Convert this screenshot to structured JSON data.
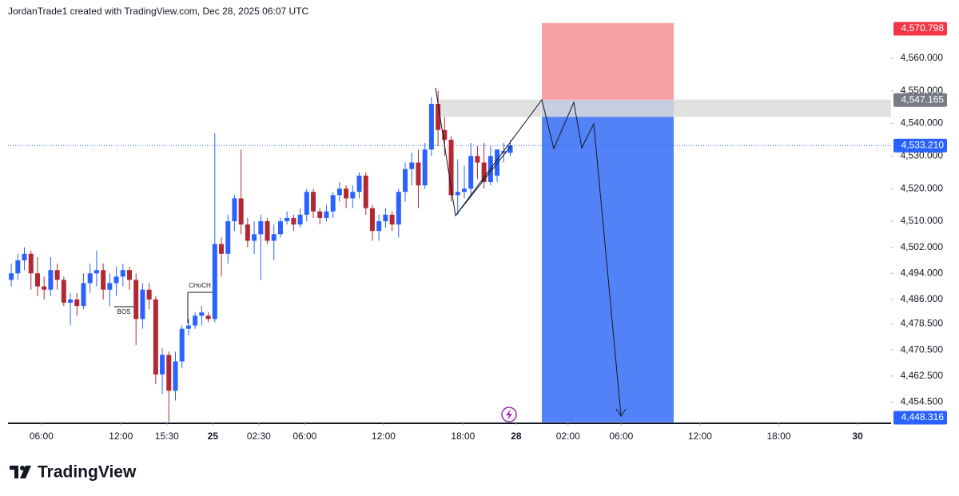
{
  "header": "JordanTrade1 created with TradingView.com, Dec 28, 2025 06:07 UTC",
  "brand": "TradingView",
  "chart_data": {
    "type": "candlestick",
    "open": [
      4492,
      4494,
      4498,
      4500,
      4494,
      4490,
      4489,
      4495,
      4492,
      4485,
      4486,
      4484,
      4491,
      4494,
      4495,
      4489,
      4491,
      4493,
      4495,
      4492,
      4480,
      4489,
      4486,
      4463,
      4469,
      4458,
      4467,
      4477,
      4478,
      4481,
      4481,
      4480,
      4503,
      4500,
      4510,
      4517,
      4509,
      4504,
      4506,
      4510,
      4504,
      4506,
      4510,
      4511,
      4509,
      4512,
      4519,
      4513,
      4511,
      4513,
      4518,
      4520,
      4517,
      4519,
      4524,
      4514,
      4507,
      4510,
      4512,
      4509,
      4519,
      4526,
      4528,
      4521,
      4532,
      4546,
      4538,
      4535,
      4518,
      4519,
      4520,
      4530,
      4528,
      4522,
      4524,
      4531,
      4531
    ],
    "high": [
      4497,
      4500,
      4502,
      4501,
      4499,
      4493,
      4499,
      4497,
      4493,
      4488,
      4488,
      4494,
      4497,
      4501,
      4497,
      4494,
      4496,
      4497,
      4496,
      4494,
      4491,
      4491,
      4487,
      4471,
      4470,
      4470,
      4478,
      4480,
      4482,
      4484,
      4482,
      4537,
      4505,
      4512,
      4518,
      4532,
      4511,
      4510,
      4512,
      4511,
      4509,
      4511,
      4513,
      4512,
      4514,
      4520,
      4520,
      4514,
      4515,
      4519,
      4522,
      4521,
      4521,
      4525,
      4525,
      4515,
      4512,
      4514,
      4513,
      4520,
      4528,
      4531,
      4532,
      4534,
      4548,
      4550,
      4542,
      4536,
      4529,
      4527,
      4534,
      4533,
      4534,
      4533,
      4532,
      4534,
      4535
    ],
    "low": [
      4490,
      4492,
      4495,
      4489,
      4487,
      4486,
      4487,
      4489,
      4484,
      4478,
      4481,
      4483,
      4488,
      4490,
      4486,
      4484,
      4487,
      4490,
      4489,
      4472,
      4477,
      4483,
      4460,
      4457,
      4448.5,
      4455,
      4465,
      4475,
      4477,
      4478,
      4479,
      4479,
      4493,
      4497,
      4507,
      4506,
      4502,
      4500,
      4492,
      4503,
      4498,
      4505,
      4509,
      4507,
      4508,
      4510,
      4511,
      4509,
      4510,
      4511,
      4516,
      4514,
      4514,
      4517,
      4512,
      4504,
      4504,
      4508,
      4507,
      4505,
      4516,
      4521,
      4514,
      4520,
      4530,
      4533,
      4530,
      4516,
      4512,
      4517,
      4518,
      4523,
      4520,
      4521,
      4522,
      4528,
      4530
    ],
    "close": [
      4494,
      4498,
      4500,
      4494,
      4490,
      4489,
      4495,
      4492,
      4485,
      4486,
      4484,
      4491,
      4494,
      4495,
      4489,
      4491,
      4493,
      4495,
      4492,
      4480,
      4489,
      4486,
      4463,
      4469,
      4458,
      4467,
      4477,
      4478,
      4481,
      4482,
      4480,
      4503,
      4500,
      4510,
      4517,
      4509,
      4504,
      4506,
      4510,
      4504,
      4506,
      4510,
      4511,
      4509,
      4512,
      4519,
      4513,
      4511,
      4513,
      4518,
      4520,
      4517,
      4519,
      4524,
      4514,
      4507,
      4510,
      4512,
      4509,
      4519,
      4526,
      4528,
      4521,
      4532,
      4546,
      4538,
      4535,
      4518,
      4519,
      4520,
      4530,
      4528,
      4522,
      4530,
      4532,
      4531.5,
      4533.21
    ],
    "up_color": "#2962ff",
    "down_color": "#b22833",
    "xlim": [
      -0.5,
      134
    ],
    "xticks": [
      {
        "value": 4.6,
        "label": "06:00"
      },
      {
        "value": 16.7,
        "label": "12:00"
      },
      {
        "value": 23.7,
        "label": "15:30"
      },
      {
        "value": 30.7,
        "label": "25"
      },
      {
        "value": 37.7,
        "label": "02:30"
      },
      {
        "value": 44.7,
        "label": "06:00"
      },
      {
        "value": 56.7,
        "label": "12:00"
      },
      {
        "value": 68.8,
        "label": "18:00"
      },
      {
        "value": 76.9,
        "label": "28"
      },
      {
        "value": 84.8,
        "label": "02:00"
      },
      {
        "value": 92.9,
        "label": "06:00"
      },
      {
        "value": 104.9,
        "label": "12:00"
      },
      {
        "value": 116.9,
        "label": "18:00"
      },
      {
        "value": 128.9,
        "label": "30"
      }
    ],
    "ylim": [
      4448,
      4571
    ],
    "yticks": [
      {
        "value": 4560,
        "label": "4,560.000"
      },
      {
        "value": 4550,
        "label": "4,550.000"
      },
      {
        "value": 4540,
        "label": "4,540.000"
      },
      {
        "value": 4530,
        "label": "4,530.000"
      },
      {
        "value": 4520,
        "label": "4,520.000"
      },
      {
        "value": 4510,
        "label": "4,510.000"
      },
      {
        "value": 4502,
        "label": "4,502.000"
      },
      {
        "value": 4494,
        "label": "4,494.000"
      },
      {
        "value": 4486,
        "label": "4,486.000"
      },
      {
        "value": 4478.5,
        "label": "4,478.500"
      },
      {
        "value": 4470.5,
        "label": "4,470.500"
      },
      {
        "value": 4462.5,
        "label": "4,462.500"
      },
      {
        "value": 4454.5,
        "label": "4,454.500"
      }
    ],
    "price_labels": [
      {
        "value": 4570.798,
        "label": "4,570.798",
        "color": "#f23645"
      },
      {
        "value": 4547.165,
        "label": "4,547.165",
        "color": "#787b86"
      },
      {
        "value": 4533.21,
        "label": "4,533.210",
        "color": "#2962ff"
      },
      {
        "value": 4448.316,
        "label": "4,448.316",
        "color": "#2962ff"
      }
    ],
    "stop_zone_color": "#f7a1a7",
    "target_zone_color": "#5282f8",
    "supply_zone": [
      4542,
      4547.3
    ],
    "supply_zone_color": "#dcdcdc",
    "annotations": [
      "BOS",
      "CHoCH"
    ]
  }
}
